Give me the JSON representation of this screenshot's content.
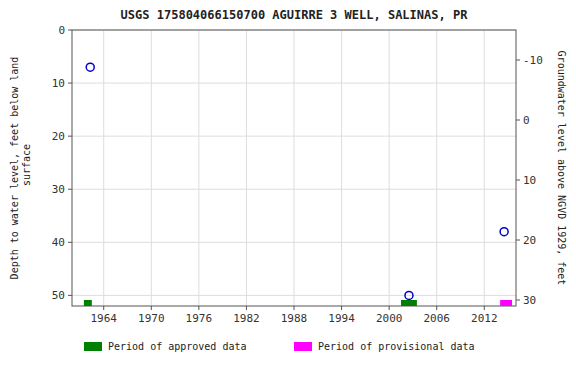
{
  "chart_data": {
    "type": "scatter",
    "title": "USGS 175804066150700 AGUIRRE 3 WELL, SALINAS, PR",
    "ylabel": "Depth to water level, feet below land\n surface",
    "y2label": "Groundwater level above NGVD 1929, feet",
    "x": [
      1962.3,
      2002.5,
      2014.5
    ],
    "values": [
      7,
      50,
      38
    ],
    "color": "#0000cc",
    "marker": "open-circle",
    "xlim": [
      1960,
      2016
    ],
    "xticks": [
      1964,
      1970,
      1976,
      1982,
      1988,
      1994,
      2000,
      2006,
      2012
    ],
    "ylim": [
      52,
      0
    ],
    "yticks": [
      0,
      10,
      20,
      30,
      40,
      50
    ],
    "y2lim": [
      31,
      -15
    ],
    "y2ticks": [
      30,
      20,
      10,
      0,
      -10
    ],
    "periods": [
      {
        "name": "Period of approved data",
        "color": "#008000",
        "x_start": [
          1961.5,
          2001.5
        ],
        "x_end": [
          1962.5,
          2003.5
        ]
      },
      {
        "name": "Period of provisional data",
        "color": "#ff00ff",
        "x_start": [
          2014.0
        ],
        "x_end": [
          2015.5
        ]
      }
    ],
    "grid": true,
    "legend": "bottom"
  }
}
